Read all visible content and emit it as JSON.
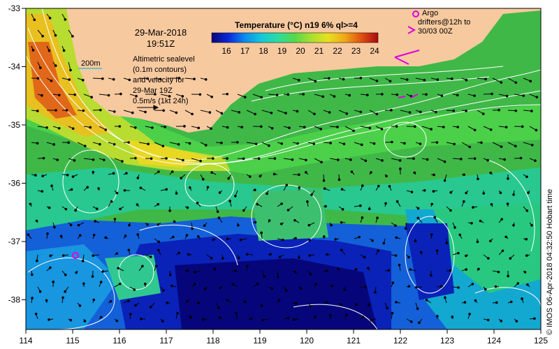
{
  "map": {
    "date": "29-Mar-2018",
    "time": "19:51Z",
    "scale_label": "200m",
    "sealevel_note": [
      "Altimetric sealevel",
      "(0.1m contours)",
      "and velocity for",
      "29-Mar 19Z",
      "0.5m/s (1kt 24h)"
    ],
    "argo_label": [
      "Argo",
      "drifters@12h to",
      "30/03 00Z"
    ],
    "credit": "© IMOS 06-Apr-2018 04:32:50 Hobart time",
    "colors": {
      "land": "#F7C99F",
      "deep": "#0A0AA0",
      "mid": "#3CC83C",
      "warm": "#E8E020",
      "hot": "#E05010",
      "marker": "#E000E0"
    }
  },
  "colorbar": {
    "title": "Temperature (°C) n19 6% ql>=4",
    "ticks": [
      "16",
      "17",
      "18",
      "19",
      "20",
      "21",
      "22",
      "23",
      "24"
    ],
    "stops": [
      "#06067a",
      "#0a28d8",
      "#0c8cf0",
      "#16c8d8",
      "#2cdca0",
      "#56d84a",
      "#a8e030",
      "#e8e020",
      "#f0a818",
      "#e05010",
      "#a80a10"
    ]
  },
  "axes": {
    "x_ticks": [
      "114",
      "115",
      "116",
      "117",
      "118",
      "119",
      "120",
      "121",
      "122",
      "123",
      "124",
      "125"
    ],
    "y_ticks": [
      "-33",
      "-34",
      "-35",
      "-36",
      "-37",
      "-38"
    ]
  }
}
